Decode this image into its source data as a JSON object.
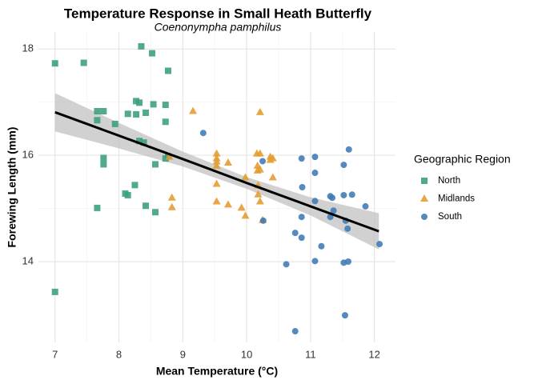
{
  "chart_data": {
    "type": "scatter",
    "title": "Temperature Response in Small Heath Butterfly",
    "subtitle": "Coenonympha pamphilus",
    "x_label": "Mean Temperature (°C)",
    "y_label": "Forewing Length (mm)",
    "legend_title": "Geographic Region",
    "legend_position": "right",
    "xlim": [
      6.74,
      12.33
    ],
    "ylim": [
      12.48,
      18.32
    ],
    "xticks": [
      7,
      8,
      9,
      10,
      11,
      12
    ],
    "yticks": [
      14,
      16,
      18
    ],
    "grid": true,
    "minor_grid": true,
    "series": [
      {
        "name": "North",
        "color": "#3a9e7e",
        "marker": "square",
        "x": [
          7.0,
          7.0,
          7.45,
          7.66,
          7.66,
          7.66,
          7.76,
          7.76,
          7.76,
          7.94,
          8.1,
          8.14,
          8.14,
          8.25,
          8.27,
          8.27,
          8.32,
          8.32,
          8.35,
          8.39,
          8.42,
          8.42,
          8.52,
          8.54,
          8.57,
          8.57,
          8.73,
          8.73,
          8.73,
          8.77,
          8.77
        ],
        "values": [
          17.73,
          13.43,
          17.74,
          16.83,
          16.66,
          15.01,
          16.83,
          15.95,
          15.83,
          16.59,
          15.28,
          15.25,
          16.78,
          15.44,
          17.02,
          16.77,
          16.99,
          16.27,
          18.05,
          16.24,
          15.05,
          16.8,
          17.92,
          16.96,
          15.83,
          14.93,
          16.95,
          16.63,
          15.94,
          17.59,
          15.98
        ]
      },
      {
        "name": "Midlands",
        "color": "#e49b2e",
        "marker": "triangle",
        "x": [
          8.79,
          8.83,
          8.83,
          9.16,
          9.53,
          9.53,
          9.53,
          9.53,
          9.53,
          9.53,
          9.71,
          9.71,
          9.92,
          9.98,
          9.98,
          10.16,
          10.17,
          10.17,
          10.18,
          10.18,
          10.21,
          10.21,
          10.21,
          10.21,
          10.37,
          10.37,
          10.41,
          10.41,
          10.25
        ],
        "values": [
          15.97,
          15.2,
          15.02,
          16.83,
          16.03,
          15.94,
          15.88,
          15.46,
          15.13,
          15.8,
          15.07,
          15.86,
          15.01,
          14.86,
          15.58,
          16.03,
          15.8,
          15.71,
          15.43,
          15.26,
          16.81,
          16.03,
          15.73,
          15.13,
          15.97,
          15.91,
          15.58,
          15.94,
          14.78
        ]
      },
      {
        "name": "South",
        "color": "#3d7ab5",
        "marker": "circle",
        "x": [
          9.32,
          10.25,
          10.26,
          10.62,
          10.76,
          10.76,
          10.86,
          10.87,
          10.86,
          10.86,
          11.07,
          11.07,
          11.07,
          11.07,
          11.17,
          11.31,
          11.34,
          11.31,
          11.36,
          11.52,
          11.52,
          11.52,
          11.54,
          11.55,
          11.58,
          11.6,
          11.59,
          11.65,
          11.86,
          12.08
        ],
        "values": [
          16.42,
          15.89,
          14.77,
          13.95,
          14.54,
          12.69,
          15.94,
          15.4,
          14.84,
          14.45,
          15.97,
          15.67,
          15.14,
          14.01,
          14.29,
          15.23,
          15.2,
          14.84,
          14.96,
          15.82,
          15.25,
          13.98,
          12.99,
          14.77,
          14.62,
          16.11,
          14.0,
          15.26,
          15.04,
          14.33
        ]
      }
    ],
    "fit": {
      "color": "#000000",
      "band_color": "#bdbdbd",
      "x": [
        7,
        8,
        9,
        10,
        11,
        12.07
      ],
      "y": [
        16.81,
        16.37,
        15.93,
        15.48,
        15.04,
        14.57
      ],
      "lower": [
        16.45,
        16.13,
        15.79,
        15.37,
        14.87,
        14.23
      ],
      "upper": [
        17.17,
        16.61,
        16.07,
        15.59,
        15.21,
        14.91
      ]
    }
  }
}
